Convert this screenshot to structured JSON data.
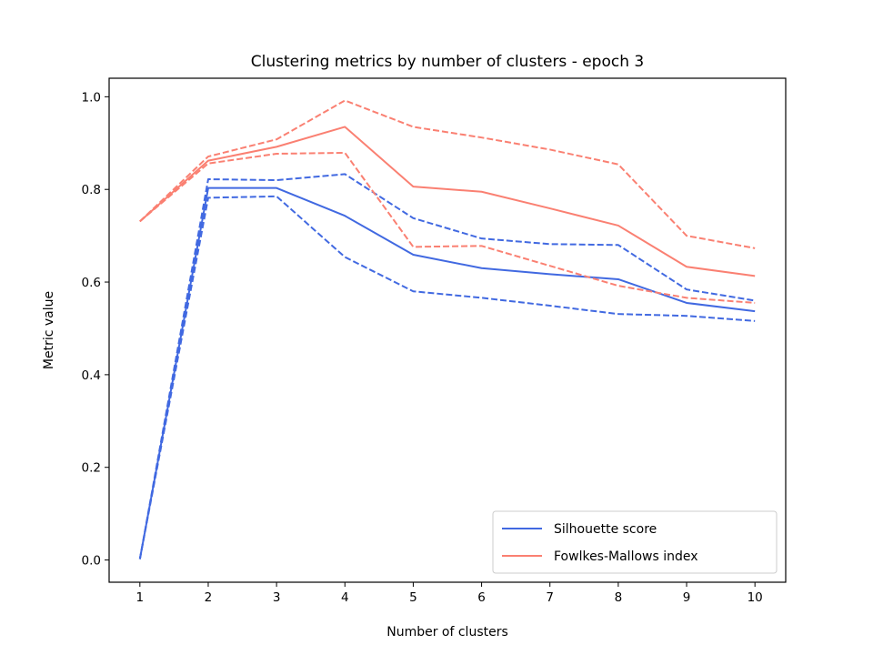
{
  "chart_data": {
    "type": "line",
    "title": "Clustering metrics by number of clusters - epoch 3",
    "xlabel": "Number of clusters",
    "ylabel": "Metric value",
    "xlim": [
      0.55,
      10.45
    ],
    "ylim": [
      -0.048,
      1.04
    ],
    "xticks": [
      1,
      2,
      3,
      4,
      5,
      6,
      7,
      8,
      9,
      10
    ],
    "yticks": [
      0.0,
      0.2,
      0.4,
      0.6,
      0.8,
      1.0
    ],
    "ytick_labels": [
      "0.0",
      "0.2",
      "0.4",
      "0.6",
      "0.8",
      "1.0"
    ],
    "grid": false,
    "legend_position": "lower-right",
    "x": [
      1,
      2,
      3,
      4,
      5,
      6,
      7,
      8,
      9,
      10
    ],
    "series": [
      {
        "name": "Silhouette score",
        "color": "#4169e1",
        "style": "solid",
        "legend": true,
        "values": [
          0.002,
          0.803,
          0.803,
          0.743,
          0.659,
          0.63,
          0.617,
          0.606,
          0.555,
          0.537
        ]
      },
      {
        "name": "",
        "color": "#4169e1",
        "style": "dashed",
        "legend": false,
        "values": [
          0.002,
          0.822,
          0.82,
          0.833,
          0.738,
          0.694,
          0.682,
          0.68,
          0.584,
          0.56
        ]
      },
      {
        "name": "",
        "color": "#4169e1",
        "style": "dashed",
        "legend": false,
        "values": [
          0.002,
          0.782,
          0.785,
          0.654,
          0.58,
          0.566,
          0.549,
          0.531,
          0.527,
          0.516
        ]
      },
      {
        "name": "Fowlkes-Mallows index",
        "color": "#fa8072",
        "style": "solid",
        "legend": true,
        "values": [
          0.731,
          0.862,
          0.892,
          0.935,
          0.806,
          0.795,
          0.759,
          0.722,
          0.633,
          0.613
        ]
      },
      {
        "name": "",
        "color": "#fa8072",
        "style": "dashed",
        "legend": false,
        "values": [
          0.731,
          0.871,
          0.908,
          0.992,
          0.935,
          0.912,
          0.886,
          0.854,
          0.7,
          0.673
        ]
      },
      {
        "name": "",
        "color": "#fa8072",
        "style": "dashed",
        "legend": false,
        "values": [
          0.731,
          0.856,
          0.877,
          0.879,
          0.676,
          0.678,
          0.635,
          0.592,
          0.566,
          0.555
        ]
      }
    ]
  }
}
